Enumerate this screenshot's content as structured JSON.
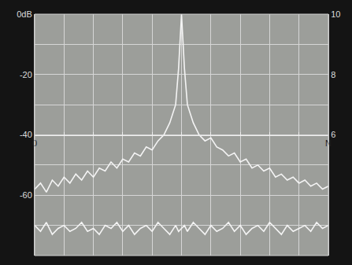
{
  "chart_data": {
    "type": "line",
    "x": [
      0,
      0.2,
      0.4,
      0.6,
      0.8,
      1,
      1.2,
      1.4,
      1.6,
      1.8,
      2,
      2.2,
      2.4,
      2.6,
      2.8,
      3,
      3.2,
      3.4,
      3.6,
      3.8,
      4,
      4.2,
      4.4,
      4.6,
      4.8,
      4.9,
      5,
      5.1,
      5.2,
      5.4,
      5.6,
      5.8,
      6,
      6.2,
      6.4,
      6.6,
      6.8,
      7,
      7.2,
      7.4,
      7.6,
      7.8,
      8,
      8.2,
      8.4,
      8.6,
      8.8,
      9,
      9.2,
      9.4,
      9.6,
      9.8,
      10
    ],
    "series": [
      {
        "color": "#f4f4f4",
        "values": [
          -58,
          -56,
          -59,
          -55,
          -57,
          -54,
          -56,
          -53,
          -55,
          -52,
          -54,
          -51,
          -52,
          -49,
          -51,
          -48,
          -49,
          -46,
          -47,
          -44,
          -45,
          -42,
          -40,
          -36,
          -30,
          -18,
          0,
          -18,
          -30,
          -36,
          -40,
          -42,
          -41,
          -44,
          -45,
          -47,
          -46,
          -49,
          -48,
          -51,
          -50,
          -52,
          -51,
          -54,
          -53,
          -55,
          -54,
          -56,
          -55,
          -57,
          -56,
          -58,
          -57
        ]
      },
      {
        "color": "#f4f4f4",
        "values": [
          -70,
          -72,
          -69,
          -73,
          -71,
          -70,
          -72,
          -71,
          -69,
          -72,
          -71,
          -73,
          -70,
          -71,
          -69,
          -72,
          -70,
          -73,
          -71,
          -70,
          -72,
          -69,
          -71,
          -73,
          -70,
          -72,
          -71,
          -70,
          -72,
          -69,
          -71,
          -73,
          -70,
          -72,
          -71,
          -69,
          -72,
          -70,
          -73,
          -71,
          -70,
          -72,
          -69,
          -71,
          -73,
          -70,
          -72,
          -71,
          -70,
          -72,
          -69,
          -71,
          -70
        ]
      }
    ],
    "xlim": [
      0,
      10
    ],
    "xticks": [
      0,
      {
        "value": 10,
        "label": "N"
      }
    ],
    "ylim": [
      -80,
      0
    ],
    "yticks": [
      {
        "value": 0,
        "label": "0dB"
      },
      -20,
      -40,
      -60
    ],
    "y2lim": [
      2,
      10
    ],
    "y2ticks": [
      10,
      8,
      6
    ],
    "grid": true
  }
}
